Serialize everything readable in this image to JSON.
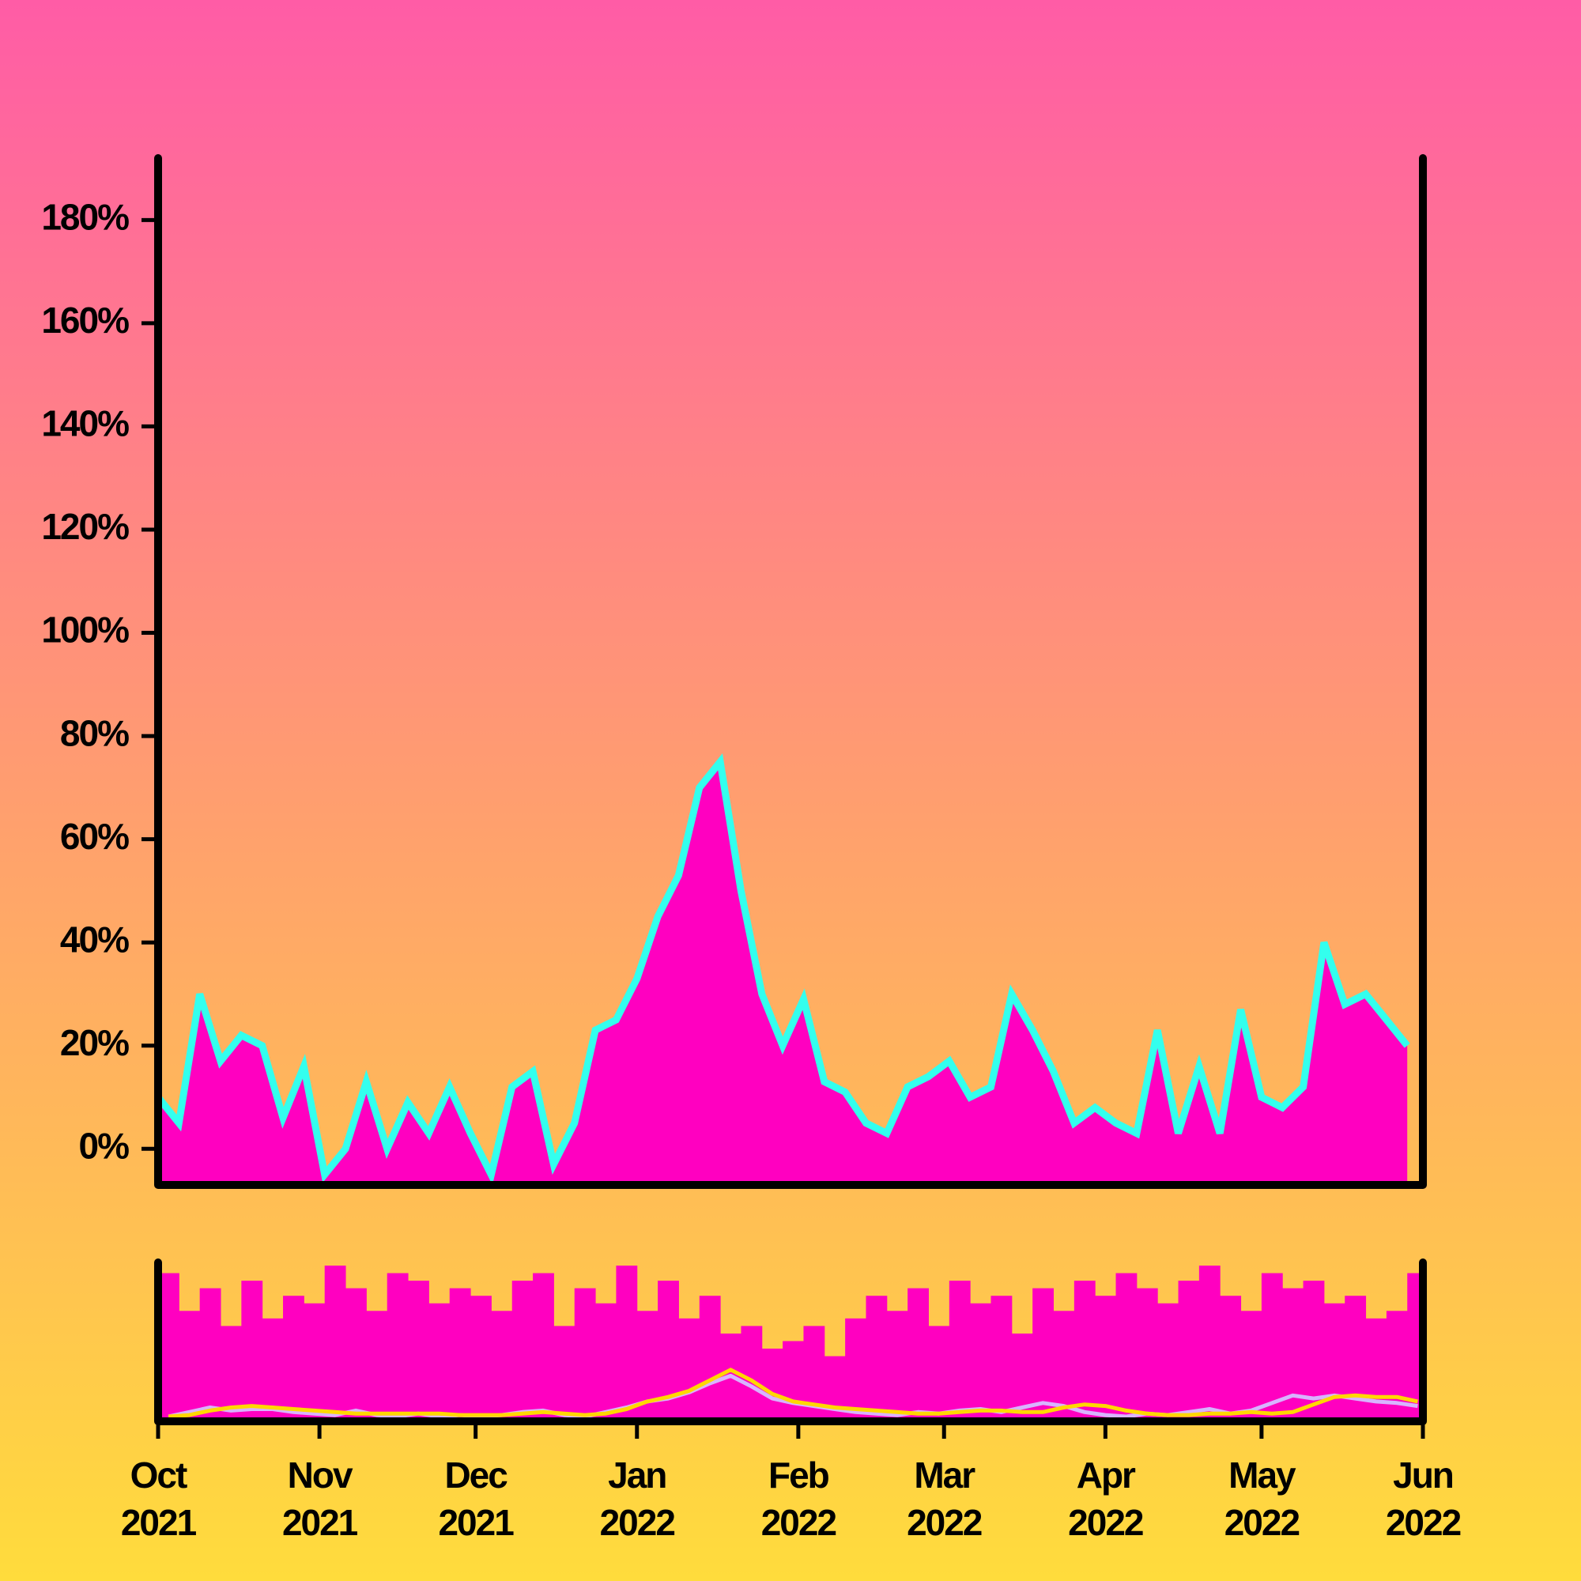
{
  "chart_data": [
    {
      "type": "area",
      "x": [
        "2021-10-01",
        "2021-10-05",
        "2021-10-09",
        "2021-10-13",
        "2021-10-17",
        "2021-10-21",
        "2021-10-25",
        "2021-10-29",
        "2021-11-02",
        "2021-11-06",
        "2021-11-10",
        "2021-11-14",
        "2021-11-18",
        "2021-11-22",
        "2021-11-26",
        "2021-11-30",
        "2021-12-04",
        "2021-12-08",
        "2021-12-12",
        "2021-12-16",
        "2021-12-20",
        "2021-12-24",
        "2021-12-28",
        "2022-01-01",
        "2022-01-05",
        "2022-01-09",
        "2022-01-13",
        "2022-01-17",
        "2022-01-21",
        "2022-01-25",
        "2022-01-29",
        "2022-02-02",
        "2022-02-06",
        "2022-02-10",
        "2022-02-14",
        "2022-02-18",
        "2022-02-22",
        "2022-02-26",
        "2022-03-02",
        "2022-03-06",
        "2022-03-10",
        "2022-03-14",
        "2022-03-18",
        "2022-03-22",
        "2022-03-26",
        "2022-03-30",
        "2022-04-03",
        "2022-04-07",
        "2022-04-11",
        "2022-04-15",
        "2022-04-19",
        "2022-04-23",
        "2022-04-27",
        "2022-05-01",
        "2022-05-05",
        "2022-05-09",
        "2022-05-13",
        "2022-05-17",
        "2022-05-21",
        "2022-05-25",
        "2022-05-29"
      ],
      "values": [
        10,
        5,
        30,
        17,
        22,
        20,
        6,
        16,
        -5,
        0,
        13,
        0,
        9,
        3,
        12,
        3,
        -5,
        12,
        15,
        -3,
        5,
        23,
        25,
        33,
        45,
        53,
        70,
        75,
        50,
        30,
        20,
        29,
        13,
        11,
        5,
        3,
        12,
        14,
        17,
        10,
        12,
        30,
        23,
        15,
        5,
        8,
        5,
        3,
        23,
        3,
        16,
        3,
        27,
        10,
        8,
        12,
        40,
        28,
        30,
        25,
        20
      ],
      "color": "#ff00c0",
      "line_color": "#33ffee",
      "xlim": [
        "2021-10-01",
        "2022-06-01"
      ],
      "ylim": [
        -7,
        192
      ],
      "yticks": [
        {
          "value": 0,
          "label": "0%"
        },
        {
          "value": 20,
          "label": "20%"
        },
        {
          "value": 40,
          "label": "40%"
        },
        {
          "value": 60,
          "label": "60%"
        },
        {
          "value": 80,
          "label": "80%"
        },
        {
          "value": 100,
          "label": "100%"
        },
        {
          "value": 120,
          "label": "120%"
        },
        {
          "value": 140,
          "label": "140%"
        },
        {
          "value": 160,
          "label": "160%"
        },
        {
          "value": 180,
          "label": "180%"
        }
      ]
    },
    {
      "type": "bar",
      "x": [
        "2021-10-01",
        "2021-10-05",
        "2021-10-09",
        "2021-10-13",
        "2021-10-17",
        "2021-10-21",
        "2021-10-25",
        "2021-10-29",
        "2021-11-02",
        "2021-11-06",
        "2021-11-10",
        "2021-11-14",
        "2021-11-18",
        "2021-11-22",
        "2021-11-26",
        "2021-11-30",
        "2021-12-04",
        "2021-12-08",
        "2021-12-12",
        "2021-12-16",
        "2021-12-20",
        "2021-12-24",
        "2021-12-28",
        "2022-01-01",
        "2022-01-05",
        "2022-01-09",
        "2022-01-13",
        "2022-01-17",
        "2022-01-21",
        "2022-01-25",
        "2022-01-29",
        "2022-02-02",
        "2022-02-06",
        "2022-02-10",
        "2022-02-14",
        "2022-02-18",
        "2022-02-22",
        "2022-02-26",
        "2022-03-02",
        "2022-03-06",
        "2022-03-10",
        "2022-03-14",
        "2022-03-18",
        "2022-03-22",
        "2022-03-26",
        "2022-03-30",
        "2022-04-03",
        "2022-04-07",
        "2022-04-11",
        "2022-04-15",
        "2022-04-19",
        "2022-04-23",
        "2022-04-27",
        "2022-05-01",
        "2022-05-05",
        "2022-05-09",
        "2022-05-13",
        "2022-05-17",
        "2022-05-21",
        "2022-05-25",
        "2022-05-29"
      ],
      "values": [
        95,
        70,
        85,
        60,
        90,
        65,
        80,
        75,
        100,
        85,
        70,
        95,
        90,
        75,
        85,
        80,
        70,
        90,
        95,
        60,
        85,
        75,
        100,
        70,
        90,
        65,
        80,
        55,
        60,
        45,
        50,
        60,
        40,
        65,
        80,
        70,
        85,
        60,
        90,
        75,
        80,
        55,
        85,
        70,
        90,
        80,
        95,
        85,
        75,
        90,
        100,
        80,
        70,
        95,
        85,
        90,
        75,
        80,
        65,
        70,
        95
      ],
      "color": "#ff00c0",
      "lines": [
        {
          "color": "#d8b4ff",
          "values": [
            0,
            3,
            6,
            4,
            5,
            5,
            3,
            2,
            1,
            4,
            1,
            0,
            2,
            0,
            1,
            0,
            1,
            3,
            4,
            1,
            0,
            3,
            6,
            10,
            12,
            16,
            22,
            27,
            20,
            12,
            9,
            7,
            5,
            3,
            2,
            1,
            3,
            2,
            4,
            5,
            3,
            6,
            9,
            7,
            3,
            1,
            0,
            2,
            1,
            3,
            5,
            2,
            4,
            9,
            14,
            12,
            14,
            12,
            10,
            9,
            7
          ]
        },
        {
          "color": "#ffd700",
          "values": [
            0,
            1,
            4,
            6,
            7,
            6,
            5,
            4,
            3,
            2,
            2,
            2,
            2,
            2,
            1,
            1,
            1,
            2,
            3,
            2,
            1,
            2,
            5,
            10,
            13,
            17,
            24,
            31,
            24,
            15,
            10,
            8,
            6,
            5,
            4,
            3,
            2,
            2,
            3,
            4,
            4,
            3,
            3,
            6,
            8,
            7,
            4,
            2,
            1,
            1,
            2,
            2,
            3,
            2,
            3,
            8,
            13,
            14,
            13,
            13,
            10
          ]
        }
      ],
      "xlim": [
        "2021-10-01",
        "2022-06-01"
      ],
      "ylim": [
        0,
        100
      ],
      "xticks": [
        {
          "value": "2021-10-01",
          "label": "Oct\n2021"
        },
        {
          "value": "2021-11-01",
          "label": "Nov\n2021"
        },
        {
          "value": "2021-12-01",
          "label": "Dec\n2021"
        },
        {
          "value": "2022-01-01",
          "label": "Jan\n2022"
        },
        {
          "value": "2022-02-01",
          "label": "Feb\n2022"
        },
        {
          "value": "2022-03-01",
          "label": "Mar\n2022"
        },
        {
          "value": "2022-04-01",
          "label": "Apr\n2022"
        },
        {
          "value": "2022-05-01",
          "label": "May\n2022"
        },
        {
          "value": "2022-06-01",
          "label": "Jun\n2022"
        }
      ]
    }
  ]
}
